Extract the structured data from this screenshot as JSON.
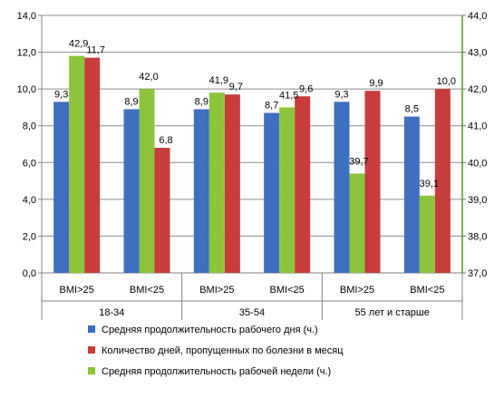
{
  "chart_data": {
    "type": "bar",
    "groups": [
      {
        "label": "18-34",
        "categories": [
          "BMI>25",
          "BMI<25"
        ]
      },
      {
        "label": "35-54",
        "categories": [
          "BMI>25",
          "BMI<25"
        ]
      },
      {
        "label": "55 лет и старше",
        "categories": [
          "BMI>25",
          "BMI<25"
        ]
      }
    ],
    "categories": [
      "BMI>25",
      "BMI<25",
      "BMI>25",
      "BMI<25",
      "BMI>25",
      "BMI<25"
    ],
    "series": [
      {
        "name": "Средняя продолжительность рабочего дня (ч.)",
        "axis": "left",
        "color": "#3f6fc1",
        "values": [
          9.3,
          8.9,
          8.9,
          8.7,
          9.3,
          8.5
        ],
        "labels": [
          "9,3",
          "8,9",
          "8,9",
          "8,7",
          "9,3",
          "8,5"
        ]
      },
      {
        "name": "Количество дней, пропущенных по болезни в месяц",
        "axis": "left",
        "color": "#c83c3c",
        "values": [
          11.7,
          6.8,
          9.7,
          9.6,
          9.9,
          10.0
        ],
        "labels": [
          "11,7",
          "6,8",
          "9,7",
          "9,6",
          "9,9",
          "10,0"
        ]
      },
      {
        "name": "Средняя продолжительность рабочей недели (ч.)",
        "axis": "right",
        "color": "#8cc43c",
        "values": [
          42.9,
          42.0,
          41.9,
          41.5,
          39.7,
          39.1
        ],
        "labels": [
          "42,9",
          "42,0",
          "41,9",
          "41,5",
          "39,7",
          "39,1"
        ]
      }
    ],
    "left_axis": {
      "ylim": [
        0,
        14
      ],
      "ticks": [
        "0,0",
        "2,0",
        "4,0",
        "6,0",
        "8,0",
        "10,0",
        "12,0",
        "14,0"
      ]
    },
    "right_axis": {
      "ylim": [
        37,
        44
      ],
      "ticks": [
        "37,0",
        "38,0",
        "39,0",
        "40,0",
        "41,0",
        "42,0",
        "43,0",
        "44,0"
      ]
    },
    "grid": true,
    "legend_position": "bottom"
  }
}
